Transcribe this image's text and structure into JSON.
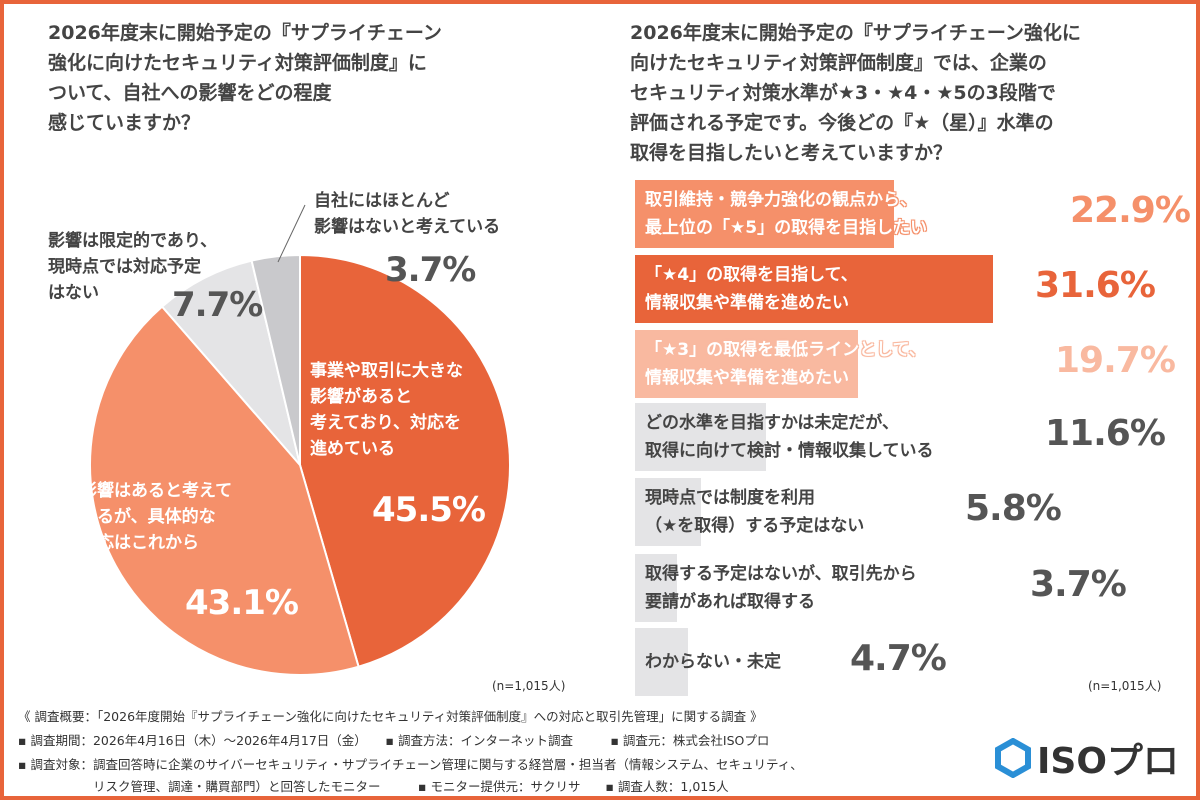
{
  "left": {
    "question": "2026年度末に開始予定の『サプライチェーン\n強化に向けたセキュリティ対策評価制度』に\nついて、自社への影響をどの程度\n感じていますか？",
    "n": "(n=1,015人)"
  },
  "right": {
    "question": "2026年度末に開始予定の『サプライチェーン強化に\n向けたセキュリティ対策評価制度』では、企業の\nセキュリティ対策水準が★3・★4・★5の3段階で\n評価される予定です。今後どの『★（星）』水準の\n取得を目指したいと考えていますか？",
    "n": "(n=1,015人)"
  },
  "chart_data": [
    {
      "type": "pie",
      "categories": [
        "事業や取引に大きな\n影響があると\n考えており、対応を\n進めている",
        "影響はあると考えて\nいるが、具体的な\n対応はこれから",
        "影響は限定的であり、\n現時点では対応予定\nはない",
        "自社にはほとんど\n影響はないと考えている"
      ],
      "values": [
        45.5,
        43.1,
        7.7,
        3.7
      ],
      "labels": [
        "45.5%",
        "43.1%",
        "7.7%",
        "3.7%"
      ],
      "colors": [
        "#e8643a",
        "#f5906a",
        "#e4e4e6",
        "#c9c9cc"
      ]
    },
    {
      "type": "bar",
      "orientation": "horizontal",
      "categories": [
        "取引維持・競争力強化の観点から、\n最上位の「★5」の取得を目指したい",
        "「★4」の取得を目指して、\n情報収集や準備を進めたい",
        "「★3」の取得を最低ラインとして、\n情報収集や準備を進めたい",
        "どの水準を目指すかは未定だが、\n取得に向けて検討・情報収集している",
        "現時点では制度を利用\n（★を取得）する予定はない",
        "取得する予定はないが、取引先から\n要請があれば取得する",
        "わからない・未定"
      ],
      "values": [
        22.9,
        31.6,
        19.7,
        11.6,
        5.8,
        3.7,
        4.7
      ],
      "labels": [
        "22.9%",
        "31.6%",
        "19.7%",
        "11.6%",
        "5.8%",
        "3.7%",
        "4.7%"
      ],
      "colors": [
        "#f5906a",
        "#e8643a",
        "#f9b9a0",
        "#e4e4e6",
        "#e4e4e6",
        "#e4e4e6",
        "#e4e4e6"
      ],
      "pct_colors": [
        "#f5906a",
        "#e8643a",
        "#f9b9a0",
        "#555555",
        "#555555",
        "#555555",
        "#555555"
      ]
    }
  ],
  "footer": {
    "line1": "《 調査概要：「2026年度開始『サプライチェーン強化に向けたセキュリティ対策評価制度』への対応と取引先管理」に関する調査 》",
    "line2": "▪ 調査期間：2026年4月16日（木）～2026年4月17日（金）　　▪ 調査方法：インターネット調査　　　▪ 調査元：株式会社ISOプロ",
    "line3": "▪ 調査対象：調査回答時に企業のサイバーセキュリティ・サプライチェーン管理に関与する経営層・担当者（情報システム、セキュリティ、",
    "line4": "　　　　　　リスク管理、調達・購買部門）と回答したモニター　　　▪ モニター提供元：サクリサ　　▪ 調査人数：1,015人"
  },
  "logo": {
    "text": "ISOプロ",
    "accent": "#2a8fd6"
  }
}
